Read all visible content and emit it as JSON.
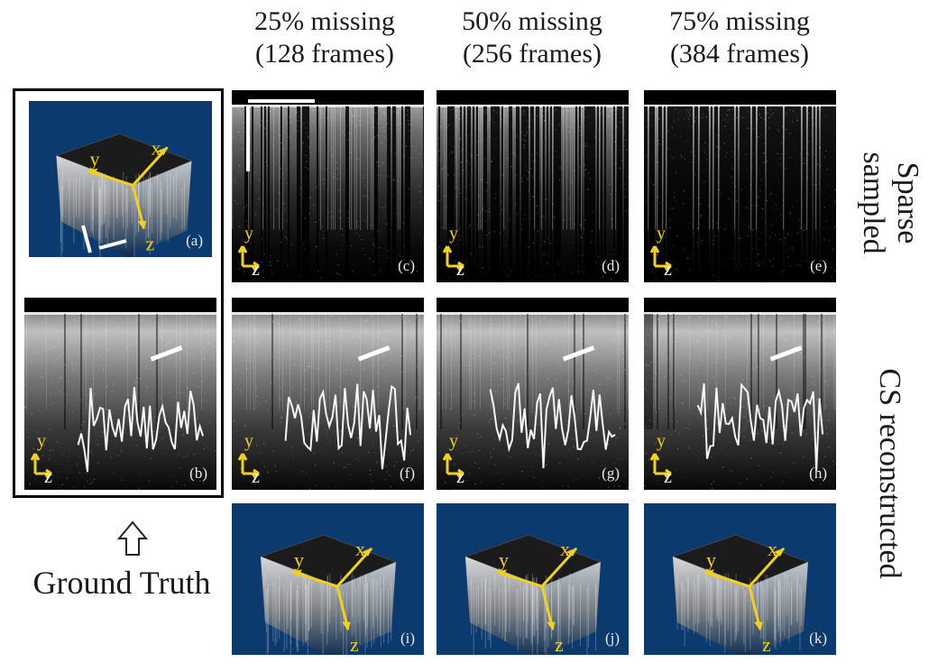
{
  "columns": [
    {
      "title_line1": "25% missing",
      "title_line2": "(128 frames)"
    },
    {
      "title_line1": "50% missing",
      "title_line2": "(256 frames)"
    },
    {
      "title_line1": "75% missing",
      "title_line2": "(384 frames)"
    }
  ],
  "rows": {
    "sparse_line1": "Sparse",
    "sparse_line2": "sampled",
    "cs": "CS reconstructed"
  },
  "ground_truth_label": "Ground Truth",
  "panels": {
    "a": "(a)",
    "b": "(b)",
    "c": "(c)",
    "d": "(d)",
    "e": "(e)",
    "f": "(f)",
    "g": "(g)",
    "h": "(h)",
    "i": "(i)",
    "j": "(j)",
    "k": "(k)"
  },
  "axes": {
    "x": "x",
    "y": "y",
    "z": "z"
  },
  "colors": {
    "volume_bg": "#0b3b6e",
    "axis": "#f0d020",
    "bscan_bg": "#050505"
  }
}
